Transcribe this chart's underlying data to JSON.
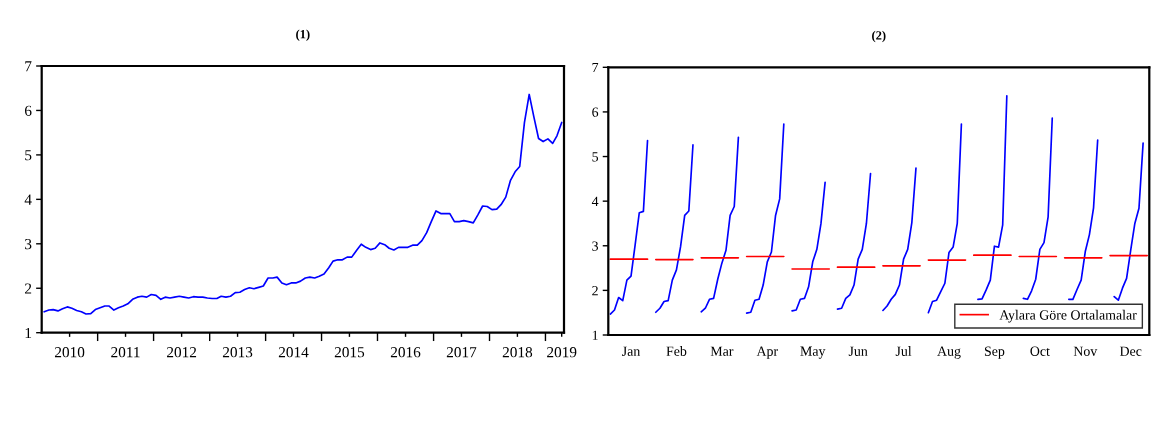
{
  "chart_data": [
    {
      "type": "line",
      "title": "(1)",
      "x": [
        "2010-01",
        "2010-02",
        "2010-03",
        "2010-04",
        "2010-05",
        "2010-06",
        "2010-07",
        "2010-08",
        "2010-09",
        "2010-10",
        "2010-11",
        "2010-12",
        "2011-01",
        "2011-02",
        "2011-03",
        "2011-04",
        "2011-05",
        "2011-06",
        "2011-07",
        "2011-08",
        "2011-09",
        "2011-10",
        "2011-11",
        "2011-12",
        "2012-01",
        "2012-02",
        "2012-03",
        "2012-04",
        "2012-05",
        "2012-06",
        "2012-07",
        "2012-08",
        "2012-09",
        "2012-10",
        "2012-11",
        "2012-12",
        "2013-01",
        "2013-02",
        "2013-03",
        "2013-04",
        "2013-05",
        "2013-06",
        "2013-07",
        "2013-08",
        "2013-09",
        "2013-10",
        "2013-11",
        "2013-12",
        "2014-01",
        "2014-02",
        "2014-03",
        "2014-04",
        "2014-05",
        "2014-06",
        "2014-07",
        "2014-08",
        "2014-09",
        "2014-10",
        "2014-11",
        "2014-12",
        "2015-01",
        "2015-02",
        "2015-03",
        "2015-04",
        "2015-05",
        "2015-06",
        "2015-07",
        "2015-08",
        "2015-09",
        "2015-10",
        "2015-11",
        "2015-12",
        "2016-01",
        "2016-02",
        "2016-03",
        "2016-04",
        "2016-05",
        "2016-06",
        "2016-07",
        "2016-08",
        "2016-09",
        "2016-10",
        "2016-11",
        "2016-12",
        "2017-01",
        "2017-02",
        "2017-03",
        "2017-04",
        "2017-05",
        "2017-06",
        "2017-07",
        "2017-08",
        "2017-09",
        "2017-10",
        "2017-11",
        "2017-12",
        "2018-01",
        "2018-02",
        "2018-03",
        "2018-04",
        "2018-05",
        "2018-06",
        "2018-07",
        "2018-08",
        "2018-09",
        "2018-10",
        "2018-11",
        "2018-12",
        "2019-01",
        "2019-02",
        "2019-03",
        "2019-04"
      ],
      "series": [
        {
          "color": "#0000ff",
          "values": [
            1.47,
            1.51,
            1.52,
            1.49,
            1.54,
            1.58,
            1.55,
            1.5,
            1.47,
            1.42,
            1.43,
            1.52,
            1.56,
            1.6,
            1.6,
            1.51,
            1.56,
            1.6,
            1.65,
            1.75,
            1.8,
            1.82,
            1.8,
            1.86,
            1.84,
            1.75,
            1.8,
            1.78,
            1.8,
            1.82,
            1.8,
            1.78,
            1.81,
            1.8,
            1.8,
            1.78,
            1.77,
            1.77,
            1.82,
            1.8,
            1.82,
            1.9,
            1.91,
            1.97,
            2.01,
            1.99,
            2.02,
            2.05,
            2.23,
            2.23,
            2.25,
            2.12,
            2.08,
            2.12,
            2.12,
            2.16,
            2.23,
            2.25,
            2.23,
            2.27,
            2.32,
            2.46,
            2.61,
            2.64,
            2.64,
            2.7,
            2.7,
            2.85,
            2.99,
            2.92,
            2.87,
            2.9,
            3.02,
            2.98,
            2.9,
            2.86,
            2.92,
            2.92,
            2.92,
            2.97,
            2.97,
            3.07,
            3.25,
            3.5,
            3.74,
            3.68,
            3.68,
            3.68,
            3.5,
            3.5,
            3.52,
            3.5,
            3.47,
            3.65,
            3.85,
            3.84,
            3.77,
            3.78,
            3.88,
            4.05,
            4.42,
            4.62,
            4.74,
            5.73,
            6.36,
            5.86,
            5.37,
            5.3,
            5.36,
            5.26,
            5.43,
            5.73
          ]
        }
      ],
      "xlim": [
        "2009-12-16",
        "2019-04-16"
      ],
      "xticks": [
        {
          "value": "2010-06-16",
          "label": "2010"
        },
        {
          "value": "2010-12-16",
          "label": null
        },
        {
          "value": "2011-06-16",
          "label": "2011"
        },
        {
          "value": "2011-12-16",
          "label": null
        },
        {
          "value": "2012-06-16",
          "label": "2012"
        },
        {
          "value": "2012-12-16",
          "label": null
        },
        {
          "value": "2013-06-16",
          "label": "2013"
        },
        {
          "value": "2013-12-16",
          "label": null
        },
        {
          "value": "2014-06-16",
          "label": "2014"
        },
        {
          "value": "2014-12-16",
          "label": null
        },
        {
          "value": "2015-06-16",
          "label": "2015"
        },
        {
          "value": "2015-12-16",
          "label": null
        },
        {
          "value": "2016-06-16",
          "label": "2016"
        },
        {
          "value": "2016-12-16",
          "label": null
        },
        {
          "value": "2017-06-16",
          "label": "2017"
        },
        {
          "value": "2017-12-16",
          "label": null
        },
        {
          "value": "2018-06-16",
          "label": "2018"
        },
        {
          "value": "2018-12-16",
          "label": null
        },
        {
          "value": "2019-04-01",
          "label": "2019"
        }
      ],
      "ylim": [
        1,
        7
      ],
      "yticks": [
        1,
        2,
        3,
        4,
        5,
        6,
        7
      ]
    },
    {
      "type": "line",
      "title": "(2)",
      "categories": [
        null,
        null,
        null,
        null,
        null,
        "Jan",
        null,
        null,
        null,
        null,
        null,
        null,
        null,
        null,
        null,
        null,
        "Feb",
        null,
        null,
        null,
        null,
        null,
        null,
        null,
        null,
        null,
        null,
        "Mar",
        null,
        null,
        null,
        null,
        null,
        null,
        null,
        null,
        null,
        null,
        "Apr",
        null,
        null,
        null,
        null,
        null,
        null,
        null,
        null,
        null,
        null,
        "May",
        null,
        null,
        null,
        null,
        null,
        null,
        null,
        null,
        null,
        null,
        "Jun",
        null,
        null,
        null,
        null,
        null,
        null,
        null,
        null,
        null,
        null,
        "Jul",
        null,
        null,
        null,
        null,
        null,
        null,
        null,
        null,
        null,
        null,
        "Aug",
        null,
        null,
        null,
        null,
        null,
        null,
        null,
        null,
        null,
        null,
        "Sep",
        null,
        null,
        null,
        null,
        null,
        null,
        null,
        null,
        null,
        null,
        "Oct",
        null,
        null,
        null,
        null,
        null,
        null,
        null,
        null,
        null,
        null,
        "Nov",
        null,
        null,
        null,
        null,
        null,
        null,
        null,
        null,
        null,
        null,
        "Dec",
        null,
        null,
        null,
        null
      ],
      "series": [
        {
          "color": "#0000ff",
          "values": [
            1.47,
            1.56,
            1.84,
            1.77,
            2.23,
            2.32,
            3.02,
            3.74,
            3.77,
            5.36,
            null,
            1.51,
            1.6,
            1.75,
            1.77,
            2.23,
            2.46,
            2.98,
            3.68,
            3.78,
            5.26,
            null,
            1.52,
            1.6,
            1.8,
            1.82,
            2.25,
            2.61,
            2.9,
            3.68,
            3.88,
            5.43,
            null,
            1.49,
            1.51,
            1.78,
            1.8,
            2.12,
            2.64,
            2.86,
            3.68,
            4.05,
            5.73,
            null,
            1.54,
            1.56,
            1.8,
            1.82,
            2.08,
            2.64,
            2.92,
            3.5,
            4.42,
            null,
            null,
            1.58,
            1.6,
            1.82,
            1.9,
            2.12,
            2.7,
            2.92,
            3.5,
            4.62,
            null,
            null,
            1.55,
            1.65,
            1.8,
            1.91,
            2.12,
            2.7,
            2.92,
            3.52,
            4.74,
            null,
            null,
            1.5,
            1.75,
            1.78,
            1.97,
            2.16,
            2.85,
            2.97,
            3.5,
            5.73,
            null,
            null,
            null,
            1.8,
            1.81,
            2.01,
            2.23,
            2.99,
            2.97,
            3.47,
            6.36,
            null,
            null,
            null,
            1.82,
            1.8,
            1.99,
            2.25,
            2.92,
            3.07,
            3.65,
            5.86,
            null,
            null,
            null,
            1.8,
            1.8,
            2.02,
            2.23,
            2.87,
            3.25,
            3.85,
            5.37,
            null,
            null,
            null,
            1.86,
            1.78,
            2.05,
            2.27,
            2.9,
            3.5,
            3.84,
            5.3,
            null
          ]
        },
        {
          "name": "Aylara Göre Ortalamalar",
          "color": "#ff0000",
          "values": [
            2.7,
            2.7,
            2.7,
            2.7,
            2.7,
            2.7,
            2.7,
            2.7,
            2.7,
            2.7,
            null,
            2.69,
            2.69,
            2.69,
            2.69,
            2.69,
            2.69,
            2.69,
            2.69,
            2.69,
            2.69,
            null,
            2.73,
            2.73,
            2.73,
            2.73,
            2.73,
            2.73,
            2.73,
            2.73,
            2.73,
            2.73,
            null,
            2.76,
            2.76,
            2.76,
            2.76,
            2.76,
            2.76,
            2.76,
            2.76,
            2.76,
            2.76,
            null,
            2.48,
            2.48,
            2.48,
            2.48,
            2.48,
            2.48,
            2.48,
            2.48,
            2.48,
            2.48,
            null,
            2.52,
            2.52,
            2.52,
            2.52,
            2.52,
            2.52,
            2.52,
            2.52,
            2.52,
            2.52,
            null,
            2.55,
            2.55,
            2.55,
            2.55,
            2.55,
            2.55,
            2.55,
            2.55,
            2.55,
            2.55,
            null,
            2.68,
            2.68,
            2.68,
            2.68,
            2.68,
            2.68,
            2.68,
            2.68,
            2.68,
            2.68,
            null,
            2.79,
            2.79,
            2.79,
            2.79,
            2.79,
            2.79,
            2.79,
            2.79,
            2.79,
            2.79,
            null,
            2.76,
            2.76,
            2.76,
            2.76,
            2.76,
            2.76,
            2.76,
            2.76,
            2.76,
            2.76,
            null,
            2.73,
            2.73,
            2.73,
            2.73,
            2.73,
            2.73,
            2.73,
            2.73,
            2.73,
            2.73,
            null,
            2.78,
            2.78,
            2.78,
            2.78,
            2.78,
            2.78,
            2.78,
            2.78,
            2.78,
            2.78
          ]
        }
      ],
      "ylim": [
        1,
        7
      ],
      "yticks": [
        1,
        2,
        3,
        4,
        5,
        6,
        7
      ],
      "legend": "bottom right"
    }
  ]
}
